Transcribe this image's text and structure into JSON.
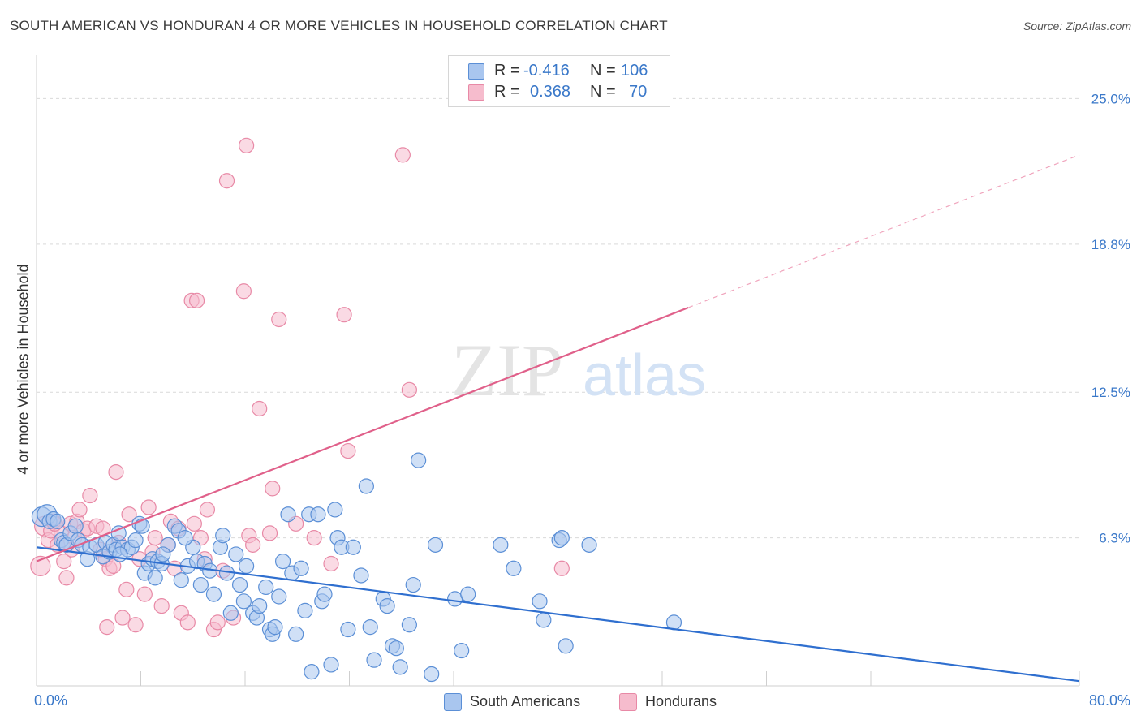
{
  "title": "SOUTH AMERICAN VS HONDURAN 4 OR MORE VEHICLES IN HOUSEHOLD CORRELATION CHART",
  "source": "Source: ZipAtlas.com",
  "watermark": {
    "zip": "ZIP",
    "atlas": "atlas"
  },
  "legend": {
    "r_label": "R =",
    "n_label": "N =",
    "rows": [
      {
        "r": "-0.416",
        "n": "106"
      },
      {
        "r": "0.368",
        "n": "70"
      }
    ]
  },
  "colors": {
    "blue_fill": "#a9c6ef",
    "blue_stroke": "#5b8fd6",
    "blue_line": "#2f6fcf",
    "pink_fill": "#f6bccd",
    "pink_stroke": "#e889a6",
    "pink_line": "#e0608a",
    "grid": "#d9d9d9",
    "axis_label": "#3a78c9"
  },
  "chart_data": {
    "type": "scatter",
    "title": "SOUTH AMERICAN VS HONDURAN 4 OR MORE VEHICLES IN HOUSEHOLD CORRELATION CHART",
    "xlabel": "",
    "ylabel": "4 or more Vehicles in Household",
    "xlim": [
      0,
      80
    ],
    "ylim": [
      0,
      26.5
    ],
    "x_tick_labels": [
      "0.0%",
      "80.0%"
    ],
    "y_ticks": [
      6.3,
      12.5,
      18.8,
      25.0
    ],
    "y_tick_labels": [
      "6.3%",
      "12.5%",
      "18.8%",
      "25.0%"
    ],
    "grid": true,
    "legend_position": "top-center",
    "series": [
      {
        "name": "South Americans",
        "r": -0.416,
        "n": 106,
        "trend": {
          "x": [
            0,
            80
          ],
          "y": [
            5.9,
            0.2
          ]
        },
        "points": [
          [
            0.4,
            7.2
          ],
          [
            0.8,
            7.3
          ],
          [
            1.0,
            7.0
          ],
          [
            1.3,
            7.1
          ],
          [
            1.6,
            7.0
          ],
          [
            1.9,
            6.2
          ],
          [
            2.1,
            6.1
          ],
          [
            2.3,
            6.0
          ],
          [
            2.6,
            6.5
          ],
          [
            3.0,
            6.8
          ],
          [
            3.2,
            6.2
          ],
          [
            3.5,
            6.0
          ],
          [
            3.9,
            5.4
          ],
          [
            4.1,
            5.9
          ],
          [
            4.6,
            6.0
          ],
          [
            5.1,
            5.5
          ],
          [
            5.3,
            6.1
          ],
          [
            5.6,
            5.7
          ],
          [
            5.9,
            6.0
          ],
          [
            6.1,
            5.8
          ],
          [
            6.3,
            6.5
          ],
          [
            6.6,
            5.9
          ],
          [
            7.0,
            5.8
          ],
          [
            7.3,
            5.9
          ],
          [
            7.6,
            6.2
          ],
          [
            7.9,
            6.9
          ],
          [
            8.1,
            6.8
          ],
          [
            8.3,
            4.8
          ],
          [
            8.6,
            5.2
          ],
          [
            8.9,
            5.4
          ],
          [
            9.1,
            4.6
          ],
          [
            9.3,
            5.3
          ],
          [
            9.6,
            5.2
          ],
          [
            10.1,
            6.0
          ],
          [
            10.6,
            6.8
          ],
          [
            10.9,
            6.6
          ],
          [
            11.1,
            4.5
          ],
          [
            11.6,
            5.1
          ],
          [
            12.0,
            5.9
          ],
          [
            12.3,
            5.3
          ],
          [
            12.6,
            4.3
          ],
          [
            12.9,
            5.2
          ],
          [
            13.3,
            4.9
          ],
          [
            13.6,
            3.9
          ],
          [
            14.1,
            5.9
          ],
          [
            14.3,
            6.4
          ],
          [
            14.6,
            4.8
          ],
          [
            14.9,
            3.1
          ],
          [
            15.3,
            5.6
          ],
          [
            15.6,
            4.3
          ],
          [
            15.9,
            3.6
          ],
          [
            16.1,
            5.1
          ],
          [
            16.6,
            3.1
          ],
          [
            16.9,
            2.9
          ],
          [
            17.1,
            3.4
          ],
          [
            17.6,
            4.2
          ],
          [
            17.9,
            2.4
          ],
          [
            18.1,
            2.2
          ],
          [
            18.3,
            2.5
          ],
          [
            18.6,
            3.8
          ],
          [
            18.9,
            5.3
          ],
          [
            19.3,
            7.3
          ],
          [
            19.6,
            4.8
          ],
          [
            19.9,
            2.2
          ],
          [
            20.3,
            5.0
          ],
          [
            20.6,
            3.2
          ],
          [
            20.9,
            7.3
          ],
          [
            21.1,
            0.6
          ],
          [
            21.6,
            7.3
          ],
          [
            21.9,
            3.6
          ],
          [
            22.1,
            3.9
          ],
          [
            22.6,
            0.9
          ],
          [
            22.9,
            7.5
          ],
          [
            23.1,
            6.3
          ],
          [
            23.4,
            5.9
          ],
          [
            23.9,
            2.4
          ],
          [
            24.3,
            5.9
          ],
          [
            24.9,
            4.7
          ],
          [
            25.3,
            8.5
          ],
          [
            25.6,
            2.5
          ],
          [
            25.9,
            1.1
          ],
          [
            26.6,
            3.7
          ],
          [
            26.9,
            3.4
          ],
          [
            27.3,
            1.7
          ],
          [
            27.6,
            1.6
          ],
          [
            27.9,
            0.8
          ],
          [
            28.6,
            2.6
          ],
          [
            28.9,
            4.3
          ],
          [
            29.3,
            9.6
          ],
          [
            30.3,
            0.5
          ],
          [
            30.6,
            6.0
          ],
          [
            32.1,
            3.7
          ],
          [
            32.6,
            1.5
          ],
          [
            33.1,
            3.9
          ],
          [
            35.6,
            6.0
          ],
          [
            36.6,
            5.0
          ],
          [
            38.6,
            3.6
          ],
          [
            38.9,
            2.8
          ],
          [
            40.1,
            6.2
          ],
          [
            40.3,
            6.3
          ],
          [
            40.6,
            1.7
          ],
          [
            42.4,
            6.0
          ],
          [
            48.9,
            2.7
          ],
          [
            6.4,
            5.6
          ],
          [
            9.7,
            5.6
          ],
          [
            11.4,
            6.3
          ]
        ]
      },
      {
        "name": "Hondurans",
        "r": 0.368,
        "n": 70,
        "trend": {
          "x": [
            0,
            50
          ],
          "y": [
            5.3,
            16.1
          ],
          "dashed_to": [
            80,
            22.6
          ]
        },
        "points": [
          [
            0.3,
            5.1
          ],
          [
            0.6,
            6.8
          ],
          [
            0.9,
            6.2
          ],
          [
            1.1,
            6.6
          ],
          [
            1.3,
            7.0
          ],
          [
            1.6,
            6.0
          ],
          [
            1.9,
            6.5
          ],
          [
            2.1,
            5.3
          ],
          [
            2.3,
            4.6
          ],
          [
            2.6,
            6.9
          ],
          [
            2.9,
            6.3
          ],
          [
            3.1,
            7.0
          ],
          [
            3.3,
            7.5
          ],
          [
            3.6,
            6.6
          ],
          [
            3.9,
            6.7
          ],
          [
            4.1,
            8.1
          ],
          [
            4.6,
            6.8
          ],
          [
            4.9,
            5.8
          ],
          [
            5.1,
            6.7
          ],
          [
            5.3,
            5.4
          ],
          [
            5.6,
            5.0
          ],
          [
            5.9,
            5.1
          ],
          [
            6.1,
            9.1
          ],
          [
            6.3,
            6.1
          ],
          [
            6.6,
            2.9
          ],
          [
            6.9,
            4.1
          ],
          [
            7.1,
            7.3
          ],
          [
            7.6,
            2.6
          ],
          [
            7.9,
            5.4
          ],
          [
            8.3,
            3.9
          ],
          [
            8.6,
            7.6
          ],
          [
            8.9,
            5.7
          ],
          [
            9.1,
            6.3
          ],
          [
            9.6,
            3.4
          ],
          [
            10.1,
            6.0
          ],
          [
            10.3,
            7.0
          ],
          [
            10.6,
            5.0
          ],
          [
            10.9,
            6.7
          ],
          [
            11.1,
            3.1
          ],
          [
            11.6,
            2.7
          ],
          [
            11.9,
            16.4
          ],
          [
            12.3,
            16.4
          ],
          [
            12.6,
            6.3
          ],
          [
            12.9,
            5.4
          ],
          [
            13.1,
            7.5
          ],
          [
            13.6,
            2.4
          ],
          [
            13.9,
            2.7
          ],
          [
            14.3,
            4.9
          ],
          [
            14.6,
            21.5
          ],
          [
            15.1,
            2.9
          ],
          [
            15.9,
            16.8
          ],
          [
            16.1,
            23.0
          ],
          [
            16.3,
            6.4
          ],
          [
            16.6,
            6.0
          ],
          [
            17.1,
            11.8
          ],
          [
            17.9,
            6.5
          ],
          [
            18.1,
            8.4
          ],
          [
            18.6,
            15.6
          ],
          [
            19.9,
            6.9
          ],
          [
            21.3,
            6.3
          ],
          [
            22.6,
            5.2
          ],
          [
            23.6,
            15.8
          ],
          [
            23.9,
            10.0
          ],
          [
            28.1,
            22.6
          ],
          [
            28.6,
            12.6
          ],
          [
            40.3,
            5.0
          ],
          [
            1.4,
            6.9
          ],
          [
            2.7,
            5.8
          ],
          [
            12.1,
            6.9
          ],
          [
            5.4,
            2.5
          ]
        ]
      }
    ]
  }
}
